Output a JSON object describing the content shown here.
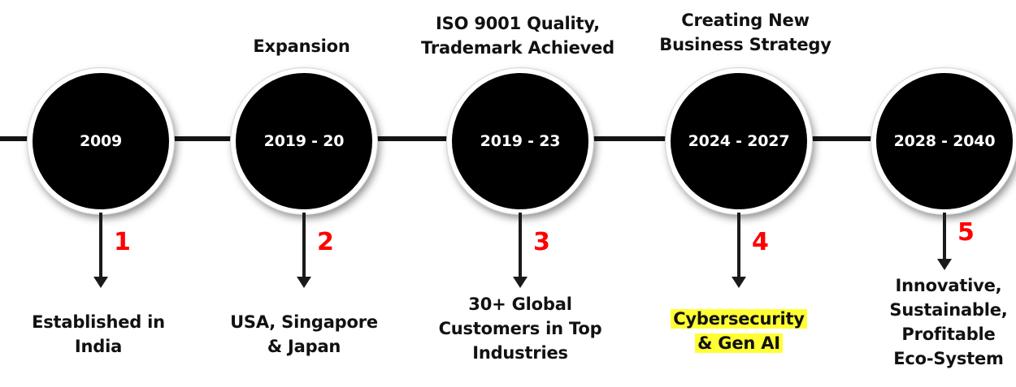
{
  "milestones": [
    {
      "year": "2009",
      "step": "1",
      "title": [],
      "description": [
        "Established in",
        "India"
      ],
      "highlight": false
    },
    {
      "year": "2019 - 20",
      "step": "2",
      "title": [
        "Expansion"
      ],
      "description": [
        "USA, Singapore",
        "& Japan"
      ],
      "highlight": false
    },
    {
      "year": "2019 - 23",
      "step": "3",
      "title": [
        "ISO 9001 Quality,",
        "Trademark Achieved"
      ],
      "description": [
        "30+ Global",
        "Customers in Top",
        "Industries"
      ],
      "highlight": false
    },
    {
      "year": "2024 - 2027",
      "step": "4",
      "title": [
        "Creating New",
        "Business Strategy"
      ],
      "description": [
        "Cybersecurity",
        "& Gen AI"
      ],
      "highlight": true
    },
    {
      "year": "2028 - 2040",
      "step": "5",
      "title": [],
      "description": [
        "Innovative,",
        "Sustainable,",
        "Profitable",
        "Eco-System"
      ],
      "highlight": false
    }
  ],
  "colors": {
    "circle": "#000000",
    "line": "#141414",
    "step_number": "#ff0000",
    "highlight": "#ffff33"
  }
}
